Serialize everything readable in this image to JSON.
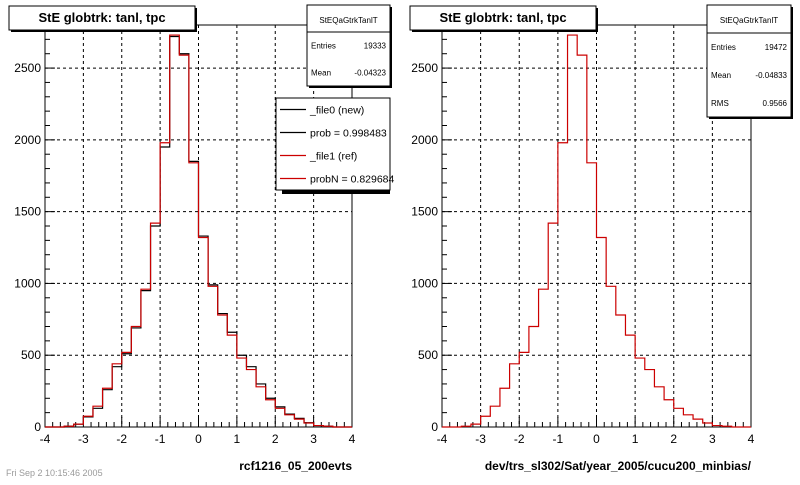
{
  "footer_note": "Fri Sep 2 10:15:46 2005",
  "chart_data": [
    {
      "type": "histogram",
      "title": "StE globtrk: tanl, tpc",
      "xlabel": "rcf1216_05_200evts",
      "xlim": [
        -4,
        4
      ],
      "ylim": [
        0,
        2800
      ],
      "xticks": [
        -4,
        -3,
        -2,
        -1,
        0,
        1,
        2,
        3,
        4
      ],
      "yticks": [
        0,
        500,
        1000,
        1500,
        2000,
        2500
      ],
      "grid": true,
      "stats": {
        "name": "StEQaGtrkTanlT",
        "rows": [
          {
            "label": "Entries",
            "value": "19333"
          },
          {
            "label": "Mean",
            "value": "-0.04323"
          }
        ]
      },
      "legend": {
        "placement": "right",
        "entries": [
          {
            "label": "_file0 (new)",
            "color": "#000000"
          },
          {
            "label": "prob = 0.998483",
            "color": "#000000"
          },
          {
            "label": "_file1 (ref)",
            "color": "#cc0000"
          },
          {
            "label": "probN = 0.829684",
            "color": "#cc0000"
          }
        ]
      },
      "bin_edges": [
        -4,
        -3.75,
        -3.5,
        -3.25,
        -3,
        -2.75,
        -2.5,
        -2.25,
        -2,
        -1.75,
        -1.5,
        -1.25,
        -1,
        -0.75,
        -0.5,
        -0.25,
        0,
        0.25,
        0.5,
        0.75,
        1,
        1.25,
        1.5,
        1.75,
        2,
        2.25,
        2.5,
        2.75,
        3,
        3.25,
        3.5,
        3.75,
        4
      ],
      "series": [
        {
          "name": "_file0 (new)",
          "color": "#000000",
          "values": [
            0,
            0,
            5,
            20,
            70,
            130,
            260,
            420,
            510,
            690,
            950,
            1400,
            1950,
            2720,
            2600,
            1850,
            1330,
            990,
            790,
            660,
            500,
            420,
            300,
            200,
            140,
            90,
            60,
            30,
            10,
            5,
            0,
            0
          ]
        },
        {
          "name": "_file1 (ref)",
          "color": "#cc0000",
          "values": [
            0,
            0,
            5,
            20,
            75,
            145,
            270,
            440,
            520,
            700,
            960,
            1420,
            1980,
            2730,
            2590,
            1840,
            1320,
            980,
            780,
            640,
            480,
            400,
            280,
            190,
            130,
            85,
            55,
            28,
            10,
            5,
            0,
            0
          ]
        }
      ]
    },
    {
      "type": "histogram",
      "title": "StE globtrk: tanl, tpc",
      "xlabel": "dev/trs_sl302/Sat/year_2005/cucu200_minbias/",
      "xlim": [
        -4,
        4
      ],
      "ylim": [
        0,
        2800
      ],
      "xticks": [
        -4,
        -3,
        -2,
        -1,
        0,
        1,
        2,
        3,
        4
      ],
      "yticks": [
        0,
        500,
        1000,
        1500,
        2000,
        2500
      ],
      "grid": true,
      "stats": {
        "name": "StEQaGtrkTanlT",
        "rows": [
          {
            "label": "Entries",
            "value": "19472"
          },
          {
            "label": "Mean",
            "value": "-0.04833"
          },
          {
            "label": "RMS",
            "value": "0.9566"
          }
        ]
      },
      "bin_edges": [
        -4,
        -3.75,
        -3.5,
        -3.25,
        -3,
        -2.75,
        -2.5,
        -2.25,
        -2,
        -1.75,
        -1.5,
        -1.25,
        -1,
        -0.75,
        -0.5,
        -0.25,
        0,
        0.25,
        0.5,
        0.75,
        1,
        1.25,
        1.5,
        1.75,
        2,
        2.25,
        2.5,
        2.75,
        3,
        3.25,
        3.5,
        3.75,
        4
      ],
      "series": [
        {
          "color": "#cc0000",
          "values": [
            0,
            0,
            5,
            20,
            75,
            145,
            270,
            440,
            520,
            700,
            960,
            1420,
            1980,
            2730,
            2590,
            1840,
            1320,
            980,
            780,
            640,
            480,
            400,
            280,
            190,
            130,
            85,
            55,
            28,
            10,
            5,
            0,
            0
          ]
        }
      ]
    }
  ]
}
